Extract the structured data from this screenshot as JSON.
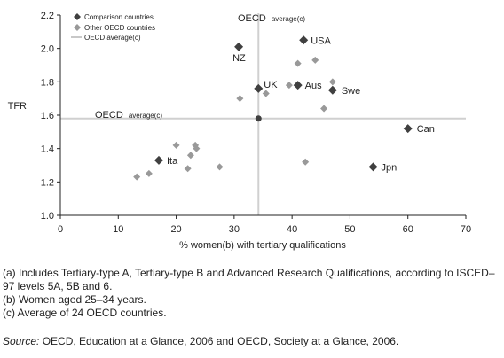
{
  "chart_data": {
    "type": "scatter",
    "xlabel": "% women(b) with tertiary qualifications",
    "ylabel": "TFR",
    "xlim": [
      0,
      70
    ],
    "ylim": [
      1.0,
      2.2
    ],
    "x_ticks": [
      "0",
      "10",
      "20",
      "30",
      "40",
      "50",
      "60",
      "70"
    ],
    "y_ticks": [
      "1.0",
      "1.2",
      "1.4",
      "1.6",
      "1.8",
      "2.0",
      "2.2"
    ],
    "grid": false,
    "legend_position": "top-left",
    "series": [
      {
        "name": "Comparison countries",
        "color": "#404040",
        "marker": "diamond",
        "points": [
          {
            "x": 42,
            "y": 2.05,
            "label": "USA"
          },
          {
            "x": 30.8,
            "y": 2.01,
            "label": "NZ"
          },
          {
            "x": 34.2,
            "y": 1.76,
            "label": "UK"
          },
          {
            "x": 41,
            "y": 1.78,
            "label": "Aus"
          },
          {
            "x": 47,
            "y": 1.75,
            "label": "Swe"
          },
          {
            "x": 60,
            "y": 1.52,
            "label": "Can"
          },
          {
            "x": 17,
            "y": 1.33,
            "label": "Ita"
          },
          {
            "x": 54,
            "y": 1.29,
            "label": "Jpn"
          }
        ]
      },
      {
        "name": "Other OECD countries",
        "color": "#999999",
        "marker": "diamond",
        "points": [
          {
            "x": 41,
            "y": 1.91
          },
          {
            "x": 44,
            "y": 1.93
          },
          {
            "x": 39.5,
            "y": 1.78
          },
          {
            "x": 47,
            "y": 1.8
          },
          {
            "x": 35.5,
            "y": 1.73
          },
          {
            "x": 31,
            "y": 1.7
          },
          {
            "x": 45.5,
            "y": 1.64
          },
          {
            "x": 20,
            "y": 1.42
          },
          {
            "x": 23.3,
            "y": 1.42
          },
          {
            "x": 23.5,
            "y": 1.4
          },
          {
            "x": 22.5,
            "y": 1.36
          },
          {
            "x": 27.5,
            "y": 1.29
          },
          {
            "x": 22,
            "y": 1.28
          },
          {
            "x": 15.3,
            "y": 1.25
          },
          {
            "x": 13.2,
            "y": 1.23
          },
          {
            "x": 42.3,
            "y": 1.32
          }
        ]
      }
    ],
    "average": {
      "name": "OECD average(c)",
      "x": 34.2,
      "y": 1.58,
      "color": "#d0d0d0",
      "point_color": "#404040"
    },
    "average_label_main": "OECD",
    "average_label_sub": "average(c)"
  },
  "footnotes": [
    "(a) Includes Tertiary-type A, Tertiary-type B and Advanced Research Qualifications, according to ISCED–97 levels 5A, 5B and 6.",
    "(b) Women aged 25–34 years.",
    "(c) Average of 24 OECD countries."
  ],
  "source": {
    "label": "Source:",
    "text": " OECD, Education at a Glance, 2006 and OECD, Society at a Glance, 2006."
  }
}
